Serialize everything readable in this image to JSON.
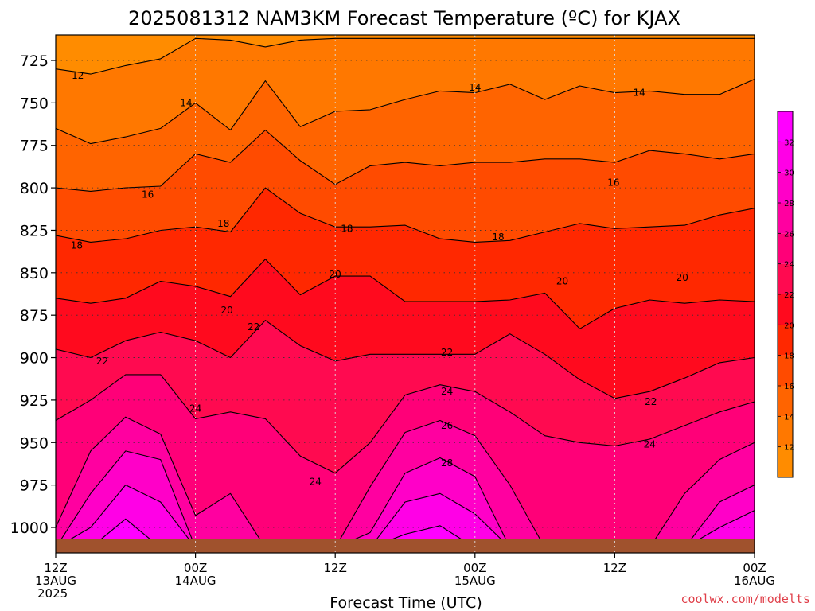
{
  "chart_data": {
    "type": "heatmap",
    "title": "2025081312 NAM3KM Forecast Temperature (ºC) for KJAX",
    "xlabel": "Forecast Time (UTC)",
    "ylabel": "",
    "credit": "coolwx.com/modelts",
    "y_axis": {
      "scale": "pressure (inverted)",
      "ylim": [
        1015,
        710
      ],
      "ticks": [
        725,
        750,
        775,
        800,
        825,
        850,
        875,
        900,
        925,
        950,
        975,
        1000
      ]
    },
    "x_axis": {
      "xlim_hours": [
        0,
        60
      ],
      "ticks": [
        {
          "hour": 0,
          "labels": [
            "12Z",
            "13AUG",
            "2025"
          ]
        },
        {
          "hour": 12,
          "labels": [
            "00Z",
            "14AUG"
          ]
        },
        {
          "hour": 24,
          "labels": [
            "12Z"
          ]
        },
        {
          "hour": 36,
          "labels": [
            "00Z",
            "15AUG"
          ]
        },
        {
          "hour": 48,
          "labels": [
            "12Z"
          ]
        },
        {
          "hour": 60,
          "labels": [
            "00Z",
            "16AUG"
          ]
        }
      ]
    },
    "grid": true,
    "colorbar": {
      "placement": "right",
      "ticks": [
        12,
        14,
        16,
        18,
        20,
        22,
        24,
        26,
        28,
        30,
        32
      ],
      "levels": [
        {
          "min": 10,
          "max": 12,
          "color": "#ff8c00"
        },
        {
          "min": 12,
          "max": 14,
          "color": "#ff7800"
        },
        {
          "min": 14,
          "max": 16,
          "color": "#ff6400"
        },
        {
          "min": 16,
          "max": 18,
          "color": "#ff4b00"
        },
        {
          "min": 18,
          "max": 20,
          "color": "#ff2800"
        },
        {
          "min": 20,
          "max": 22,
          "color": "#ff0a1e"
        },
        {
          "min": 22,
          "max": 24,
          "color": "#ff0a50"
        },
        {
          "min": 24,
          "max": 26,
          "color": "#ff0078"
        },
        {
          "min": 26,
          "max": 28,
          "color": "#ff00a0"
        },
        {
          "min": 28,
          "max": 30,
          "color": "#ff00c8"
        },
        {
          "min": 30,
          "max": 32,
          "color": "#ff00e6"
        },
        {
          "min": 32,
          "max": 34,
          "color": "#ff00ff"
        }
      ]
    },
    "ground_color": "#a0522d",
    "hours": [
      0,
      3,
      6,
      9,
      12,
      15,
      18,
      21,
      24,
      27,
      30,
      33,
      36,
      39,
      42,
      45,
      48,
      51,
      54,
      57,
      60
    ],
    "isotherms": [
      {
        "value": 12,
        "p": [
          730,
          733,
          728,
          724,
          712,
          713,
          717,
          713,
          712,
          712,
          712,
          712,
          712,
          712,
          712,
          712,
          712,
          712,
          712,
          712,
          712
        ]
      },
      {
        "value": 14,
        "p": [
          765,
          774,
          770,
          765,
          750,
          766,
          737,
          764,
          755,
          754,
          748,
          743,
          744,
          739,
          748,
          740,
          744,
          743,
          745,
          745,
          736
        ]
      },
      {
        "value": 16,
        "p": [
          800,
          802,
          800,
          799,
          780,
          785,
          766,
          784,
          798,
          787,
          785,
          787,
          785,
          785,
          783,
          783,
          785,
          778,
          780,
          783,
          780
        ]
      },
      {
        "value": 18,
        "p": [
          828,
          832,
          830,
          825,
          823,
          826,
          800,
          815,
          823,
          823,
          822,
          830,
          832,
          831,
          826,
          821,
          824,
          823,
          822,
          816,
          812
        ]
      },
      {
        "value": 20,
        "p": [
          865,
          868,
          865,
          855,
          858,
          864,
          842,
          863,
          852,
          852,
          867,
          867,
          867,
          866,
          862,
          883,
          871,
          866,
          868,
          866,
          867
        ]
      },
      {
        "value": 22,
        "p": [
          895,
          900,
          890,
          885,
          890,
          900,
          878,
          893,
          902,
          898,
          898,
          898,
          898,
          886,
          898,
          913,
          924,
          920,
          912,
          903,
          900
        ]
      },
      {
        "value": 24,
        "p": [
          937,
          925,
          910,
          910,
          936,
          932,
          936,
          958,
          968,
          950,
          922,
          916,
          920,
          932,
          946,
          950,
          952,
          948,
          940,
          932,
          926
        ]
      },
      {
        "value": 26,
        "p": [
          1000,
          955,
          935,
          945,
          993,
          980,
          1012,
          1012,
          1012,
          976,
          944,
          937,
          946,
          975,
          1012,
          1012,
          1012,
          1012,
          980,
          960,
          950
        ]
      },
      {
        "value": 28,
        "p": [
          1012,
          980,
          955,
          960,
          1012,
          1012,
          1012,
          1012,
          1012,
          1003,
          968,
          959,
          970,
          1012,
          1012,
          1012,
          1012,
          1012,
          1012,
          985,
          975
        ]
      },
      {
        "value": 30,
        "p": [
          1012,
          1000,
          975,
          985,
          1012,
          1012,
          1012,
          1012,
          1012,
          1012,
          985,
          980,
          992,
          1012,
          1012,
          1012,
          1012,
          1012,
          1012,
          1000,
          990
        ]
      },
      {
        "value": 32,
        "p": [
          1012,
          1012,
          995,
          1012,
          1012,
          1012,
          1012,
          1012,
          1012,
          1012,
          1004,
          999,
          1012,
          1012,
          1012,
          1012,
          1012,
          1012,
          1012,
          1012,
          1012
        ]
      }
    ],
    "contour_labels": [
      {
        "text": "12",
        "hour": 1.9,
        "p": 734
      },
      {
        "text": "14",
        "hour": 11.2,
        "p": 750
      },
      {
        "text": "14",
        "hour": 36.0,
        "p": 741
      },
      {
        "text": "14",
        "hour": 50.1,
        "p": 744
      },
      {
        "text": "16",
        "hour": 7.9,
        "p": 804
      },
      {
        "text": "16",
        "hour": 47.9,
        "p": 797
      },
      {
        "text": "18",
        "hour": 1.8,
        "p": 834
      },
      {
        "text": "18",
        "hour": 14.4,
        "p": 821
      },
      {
        "text": "18",
        "hour": 25.0,
        "p": 824
      },
      {
        "text": "18",
        "hour": 38.0,
        "p": 829
      },
      {
        "text": "20",
        "hour": 14.7,
        "p": 872
      },
      {
        "text": "20",
        "hour": 24.0,
        "p": 851
      },
      {
        "text": "20",
        "hour": 43.5,
        "p": 855
      },
      {
        "text": "20",
        "hour": 53.8,
        "p": 853
      },
      {
        "text": "22",
        "hour": 4.0,
        "p": 902
      },
      {
        "text": "22",
        "hour": 17.0,
        "p": 882
      },
      {
        "text": "22",
        "hour": 33.6,
        "p": 897
      },
      {
        "text": "22",
        "hour": 51.1,
        "p": 926
      },
      {
        "text": "24",
        "hour": 12.0,
        "p": 930
      },
      {
        "text": "24",
        "hour": 22.3,
        "p": 973
      },
      {
        "text": "24",
        "hour": 33.6,
        "p": 920
      },
      {
        "text": "24",
        "hour": 51.0,
        "p": 951
      },
      {
        "text": "26",
        "hour": 33.6,
        "p": 940
      },
      {
        "text": "28",
        "hour": 33.6,
        "p": 962
      }
    ]
  }
}
